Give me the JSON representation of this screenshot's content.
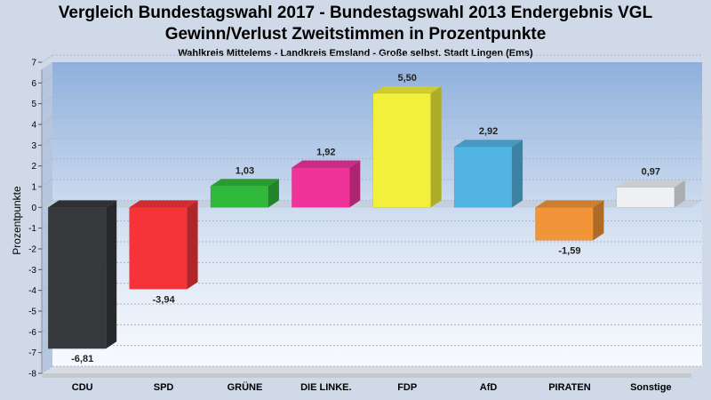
{
  "chart_data": {
    "type": "bar",
    "title": "Vergleich Bundestagswahl 2017 - Bundestagswahl 2013 Endergebnis VGL",
    "title_line2": "Gewinn/Verlust Zweitstimmen in Prozentpunkte",
    "subtitle": "Wahlkreis Mittelems - Landkreis Emsland - Große selbst. Stadt Lingen (Ems)",
    "ylabel": "Prozentpunkte",
    "xlabel": "",
    "ylim": [
      -8,
      7
    ],
    "yticks": [
      "-8",
      "-7",
      "-6",
      "-5",
      "-4",
      "-3",
      "-2",
      "-1",
      "0",
      "1",
      "2",
      "3",
      "4",
      "5",
      "6",
      "7"
    ],
    "grid": true,
    "categories": [
      "CDU",
      "SPD",
      "GRÜNE",
      "DIE LINKE.",
      "FDP",
      "AfD",
      "PIRATEN",
      "Sonstige"
    ],
    "values": [
      -6.81,
      -3.94,
      1.03,
      1.92,
      5.5,
      2.92,
      -1.59,
      0.97
    ],
    "value_labels": [
      "-6,81",
      "-3,94",
      "1,03",
      "1,92",
      "5,50",
      "2,92",
      "-1,59",
      "0,97"
    ],
    "colors": [
      "#36383c",
      "#f5343a",
      "#2fb83a",
      "#f0339a",
      "#f2f03a",
      "#52b4e4",
      "#f29438",
      "#eef0f4"
    ]
  }
}
